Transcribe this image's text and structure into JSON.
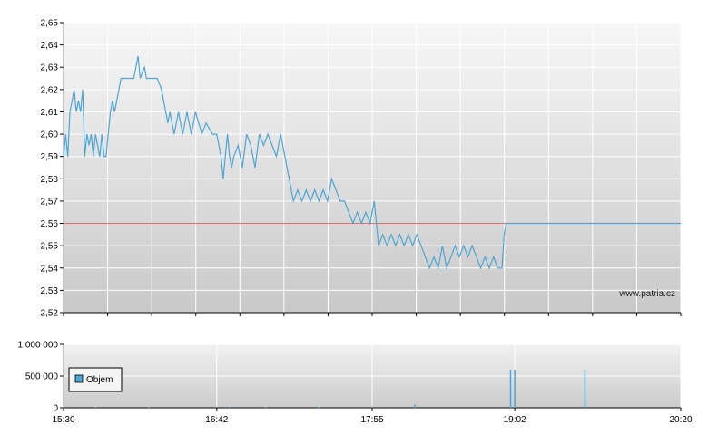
{
  "watermark": "www.patria.cz",
  "chart_data": [
    {
      "type": "line",
      "title": "",
      "xlabel": "",
      "ylabel": "",
      "y_ticks": [
        "2,65",
        "2,64",
        "2,63",
        "2,62",
        "2,61",
        "2,60",
        "2,59",
        "2,58",
        "2,57",
        "2,56",
        "2,55",
        "2,54",
        "2,53",
        "2,52"
      ],
      "ylim": [
        2.52,
        2.65
      ],
      "xlim": [
        "15:30",
        "20:20"
      ],
      "grid": true,
      "reference_line": {
        "value": 2.56,
        "color": "#e07070"
      },
      "series": [
        {
          "color": "#4da6d6",
          "points": [
            [
              "15:30",
              2.59
            ],
            [
              "15:31",
              2.6
            ],
            [
              "15:32",
              2.59
            ],
            [
              "15:33",
              2.61
            ],
            [
              "15:34",
              2.615
            ],
            [
              "15:35",
              2.62
            ],
            [
              "15:36",
              2.61
            ],
            [
              "15:37",
              2.615
            ],
            [
              "15:38",
              2.61
            ],
            [
              "15:39",
              2.62
            ],
            [
              "15:40",
              2.59
            ],
            [
              "15:41",
              2.6
            ],
            [
              "15:42",
              2.595
            ],
            [
              "15:43",
              2.6
            ],
            [
              "15:44",
              2.59
            ],
            [
              "15:45",
              2.6
            ],
            [
              "15:46",
              2.595
            ],
            [
              "15:47",
              2.59
            ],
            [
              "15:48",
              2.6
            ],
            [
              "15:49",
              2.59
            ],
            [
              "15:50",
              2.59
            ],
            [
              "15:51",
              2.6
            ],
            [
              "15:52",
              2.61
            ],
            [
              "15:53",
              2.615
            ],
            [
              "15:54",
              2.61
            ],
            [
              "15:55",
              2.615
            ],
            [
              "15:56",
              2.62
            ],
            [
              "15:57",
              2.625
            ],
            [
              "15:59",
              2.625
            ],
            [
              "16:03",
              2.625
            ],
            [
              "16:05",
              2.635
            ],
            [
              "16:06",
              2.625
            ],
            [
              "16:08",
              2.63
            ],
            [
              "16:09",
              2.625
            ],
            [
              "16:14",
              2.625
            ],
            [
              "16:16",
              2.62
            ],
            [
              "16:18",
              2.61
            ],
            [
              "16:19",
              2.605
            ],
            [
              "16:20",
              2.61
            ],
            [
              "16:22",
              2.6
            ],
            [
              "16:24",
              2.61
            ],
            [
              "16:26",
              2.6
            ],
            [
              "16:28",
              2.61
            ],
            [
              "16:30",
              2.6
            ],
            [
              "16:32",
              2.61
            ],
            [
              "16:35",
              2.6
            ],
            [
              "16:37",
              2.605
            ],
            [
              "16:40",
              2.6
            ],
            [
              "16:42",
              2.6
            ],
            [
              "16:44",
              2.59
            ],
            [
              "16:45",
              2.58
            ],
            [
              "16:46",
              2.59
            ],
            [
              "16:47",
              2.6
            ],
            [
              "16:48",
              2.59
            ],
            [
              "16:49",
              2.585
            ],
            [
              "16:50",
              2.59
            ],
            [
              "16:52",
              2.595
            ],
            [
              "16:54",
              2.585
            ],
            [
              "16:56",
              2.6
            ],
            [
              "16:58",
              2.595
            ],
            [
              "17:00",
              2.585
            ],
            [
              "17:02",
              2.6
            ],
            [
              "17:04",
              2.595
            ],
            [
              "17:06",
              2.6
            ],
            [
              "17:08",
              2.595
            ],
            [
              "17:10",
              2.59
            ],
            [
              "17:12",
              2.6
            ],
            [
              "17:14",
              2.59
            ],
            [
              "17:16",
              2.58
            ],
            [
              "17:18",
              2.57
            ],
            [
              "17:20",
              2.575
            ],
            [
              "17:22",
              2.57
            ],
            [
              "17:24",
              2.575
            ],
            [
              "17:26",
              2.57
            ],
            [
              "17:28",
              2.575
            ],
            [
              "17:30",
              2.57
            ],
            [
              "17:32",
              2.575
            ],
            [
              "17:34",
              2.57
            ],
            [
              "17:36",
              2.58
            ],
            [
              "17:38",
              2.575
            ],
            [
              "17:40",
              2.57
            ],
            [
              "17:42",
              2.57
            ],
            [
              "17:44",
              2.565
            ],
            [
              "17:46",
              2.56
            ],
            [
              "17:48",
              2.565
            ],
            [
              "17:50",
              2.56
            ],
            [
              "17:52",
              2.565
            ],
            [
              "17:54",
              2.56
            ],
            [
              "17:56",
              2.57
            ],
            [
              "17:57",
              2.56
            ],
            [
              "17:58",
              2.55
            ],
            [
              "18:00",
              2.555
            ],
            [
              "18:02",
              2.55
            ],
            [
              "18:04",
              2.555
            ],
            [
              "18:06",
              2.55
            ],
            [
              "18:08",
              2.555
            ],
            [
              "18:10",
              2.55
            ],
            [
              "18:12",
              2.555
            ],
            [
              "18:14",
              2.55
            ],
            [
              "18:16",
              2.555
            ],
            [
              "18:18",
              2.55
            ],
            [
              "18:20",
              2.545
            ],
            [
              "18:22",
              2.54
            ],
            [
              "18:24",
              2.545
            ],
            [
              "18:26",
              2.54
            ],
            [
              "18:28",
              2.55
            ],
            [
              "18:30",
              2.54
            ],
            [
              "18:32",
              2.545
            ],
            [
              "18:34",
              2.55
            ],
            [
              "18:36",
              2.545
            ],
            [
              "18:38",
              2.55
            ],
            [
              "18:40",
              2.545
            ],
            [
              "18:42",
              2.55
            ],
            [
              "18:44",
              2.545
            ],
            [
              "18:46",
              2.54
            ],
            [
              "18:48",
              2.545
            ],
            [
              "18:50",
              2.54
            ],
            [
              "18:52",
              2.545
            ],
            [
              "18:54",
              2.54
            ],
            [
              "18:56",
              2.54
            ],
            [
              "18:57",
              2.555
            ],
            [
              "18:58",
              2.56
            ],
            [
              "20:20",
              2.56
            ]
          ]
        }
      ]
    },
    {
      "type": "bar",
      "title": "",
      "y_ticks": [
        "1 000 000",
        "500 000",
        "0"
      ],
      "ylim": [
        0,
        1000000
      ],
      "x_ticks": [
        "15:30",
        "16:42",
        "17:55",
        "19:02",
        "20:20"
      ],
      "xlim": [
        "15:30",
        "20:20"
      ],
      "grid": true,
      "legend": {
        "position": "left",
        "entries": [
          {
            "name": "Objem",
            "color": "#4da6d6"
          }
        ]
      },
      "series": [
        {
          "name": "Objem",
          "color": "#4da6d6",
          "points": [
            [
              "15:45",
              8000
            ],
            [
              "16:10",
              5000
            ],
            [
              "16:48",
              15000
            ],
            [
              "17:05",
              8000
            ],
            [
              "17:30",
              10000
            ],
            [
              "17:55",
              20000
            ],
            [
              "18:15",
              50000
            ],
            [
              "19:00",
              600000
            ],
            [
              "19:02",
              600000
            ],
            [
              "19:35",
              600000
            ]
          ]
        }
      ]
    }
  ]
}
